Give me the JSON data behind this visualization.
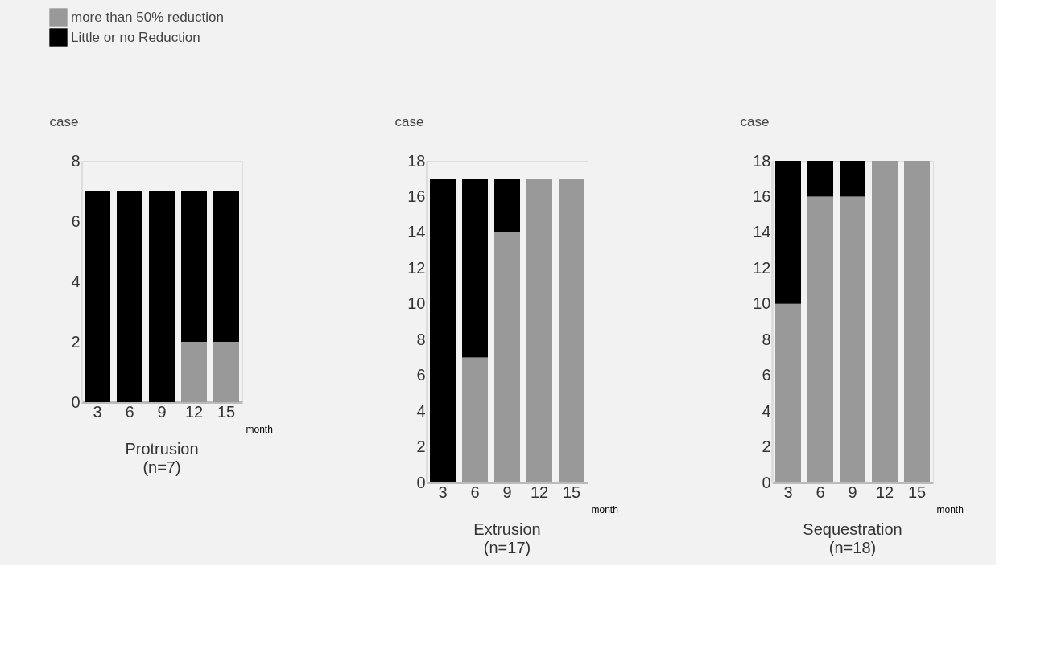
{
  "chart_data": [
    {
      "type": "bar",
      "stacked": true,
      "title": "Protrusion",
      "subtitle": "(n=7)",
      "xlabel": "month",
      "ylabel": "case",
      "categories": [
        "3",
        "6",
        "9",
        "12",
        "15"
      ],
      "ylim": [
        0,
        8
      ],
      "yticks": [
        0,
        2,
        4,
        6,
        8
      ],
      "grid": false,
      "legend": "top left",
      "series": [
        {
          "name": "more than 50% reduction",
          "color": "#999999",
          "values": [
            0,
            0,
            0,
            2,
            2
          ]
        },
        {
          "name": "Little or no Reduction",
          "color": "#000000",
          "values": [
            7,
            7,
            7,
            5,
            5
          ]
        }
      ]
    },
    {
      "type": "bar",
      "stacked": true,
      "title": "Extrusion",
      "subtitle": "(n=17)",
      "xlabel": "month",
      "ylabel": "case",
      "categories": [
        "3",
        "6",
        "9",
        "12",
        "15"
      ],
      "ylim": [
        0,
        18
      ],
      "yticks": [
        0,
        2,
        4,
        6,
        8,
        10,
        12,
        14,
        16,
        18
      ],
      "grid": false,
      "series": [
        {
          "name": "more than 50% reduction",
          "color": "#999999",
          "values": [
            0,
            7,
            14,
            17,
            17
          ]
        },
        {
          "name": "Little or no Reduction",
          "color": "#000000",
          "values": [
            17,
            10,
            3,
            0,
            0
          ]
        }
      ]
    },
    {
      "type": "bar",
      "stacked": true,
      "title": "Sequestration",
      "subtitle": "(n=18)",
      "xlabel": "month",
      "ylabel": "case",
      "categories": [
        "3",
        "6",
        "9",
        "12",
        "15"
      ],
      "ylim": [
        0,
        18
      ],
      "yticks": [
        0,
        2,
        4,
        6,
        8,
        10,
        12,
        14,
        16,
        18
      ],
      "grid": false,
      "series": [
        {
          "name": "more than 50% reduction",
          "color": "#999999",
          "values": [
            10,
            16,
            16,
            18,
            18
          ]
        },
        {
          "name": "Little or no Reduction",
          "color": "#000000",
          "values": [
            8,
            2,
            2,
            0,
            0
          ]
        }
      ]
    }
  ]
}
